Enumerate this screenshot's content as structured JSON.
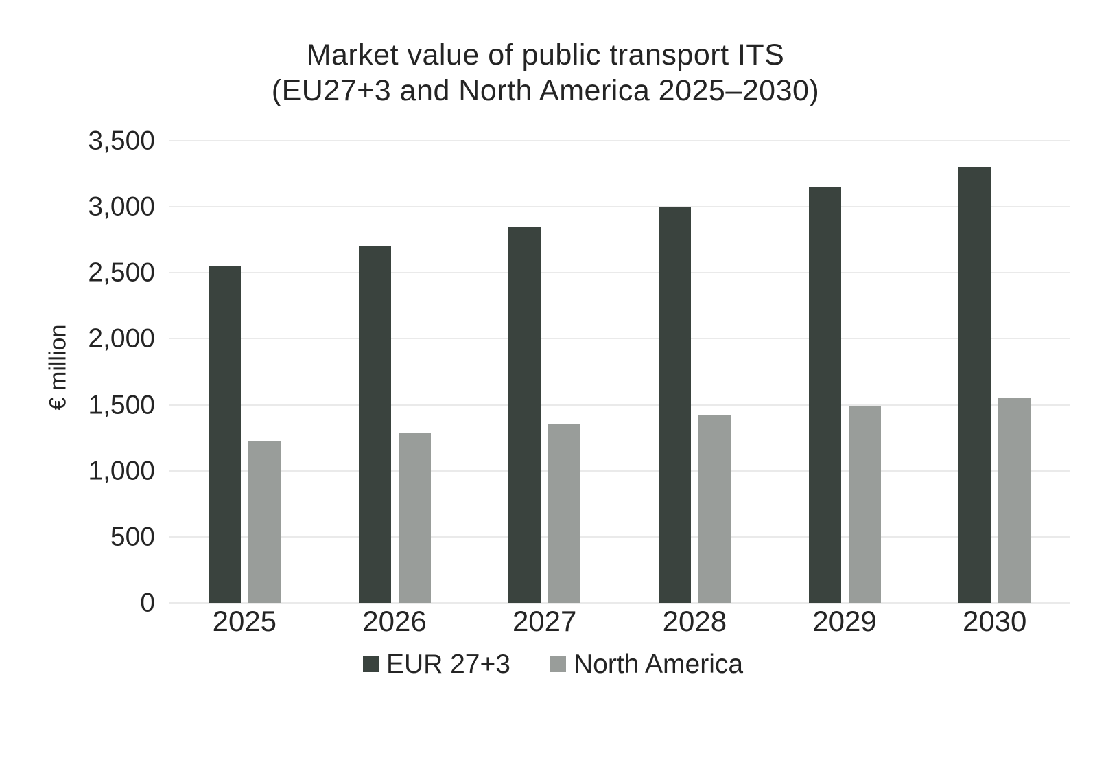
{
  "title": {
    "line1": "Market value of public transport ITS",
    "line2": "(EU27+3 and North America 2025–2030)"
  },
  "chart_data": {
    "type": "bar",
    "title": "Market value of public transport ITS (EU27+3 and North America 2025–2030)",
    "categories": [
      "2025",
      "2026",
      "2027",
      "2028",
      "2029",
      "2030"
    ],
    "series": [
      {
        "name": "EUR 27+3",
        "color": "#3a433e",
        "values": [
          2550,
          2700,
          2850,
          3000,
          3150,
          3300
        ]
      },
      {
        "name": "North America",
        "color": "#999d9a",
        "values": [
          1220,
          1290,
          1350,
          1420,
          1490,
          1550
        ]
      }
    ],
    "xlabel": "",
    "ylabel": "€ million",
    "ylim": [
      0,
      3500
    ],
    "ytick_step": 500,
    "yticks_labels": [
      "0",
      "500",
      "1,000",
      "1,500",
      "2,000",
      "2,500",
      "3,000",
      "3,500"
    ],
    "grid": true,
    "gridline_color": "#eaeaea",
    "background_color": "#ffffff",
    "text_color": "#242424",
    "legend_position": "bottom"
  }
}
